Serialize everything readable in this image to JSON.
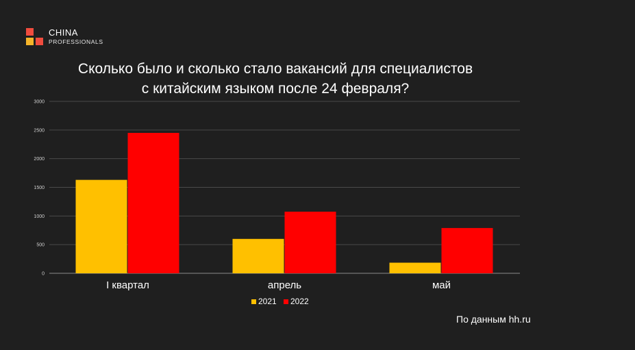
{
  "logo": {
    "name": "CHINA",
    "sub": "PROFESSIONALS",
    "colors": {
      "red": "#f04c3e",
      "yellow": "#f5b52a"
    }
  },
  "title_lines": [
    "Сколько было и сколько стало вакансий для специалистов",
    "с китайским языком после 24 февраля?"
  ],
  "source": "По данным hh.ru",
  "chart_data": {
    "type": "bar",
    "title": "Сколько было и сколько стало вакансий для специалистов с китайским языком после 24 февраля?",
    "categories": [
      "I квартал",
      "апрель",
      "май"
    ],
    "series": [
      {
        "name": "2021",
        "values": [
          1630,
          600,
          185
        ],
        "color": "#ffc000"
      },
      {
        "name": "2022",
        "values": [
          2450,
          1075,
          790
        ],
        "color": "#ff0000"
      }
    ],
    "ylim": [
      0,
      3000
    ],
    "yticks": [
      0,
      500,
      1000,
      1500,
      2000,
      2500,
      3000
    ],
    "grid": true,
    "legend_position": "bottom",
    "xlabel": "",
    "ylabel": ""
  }
}
